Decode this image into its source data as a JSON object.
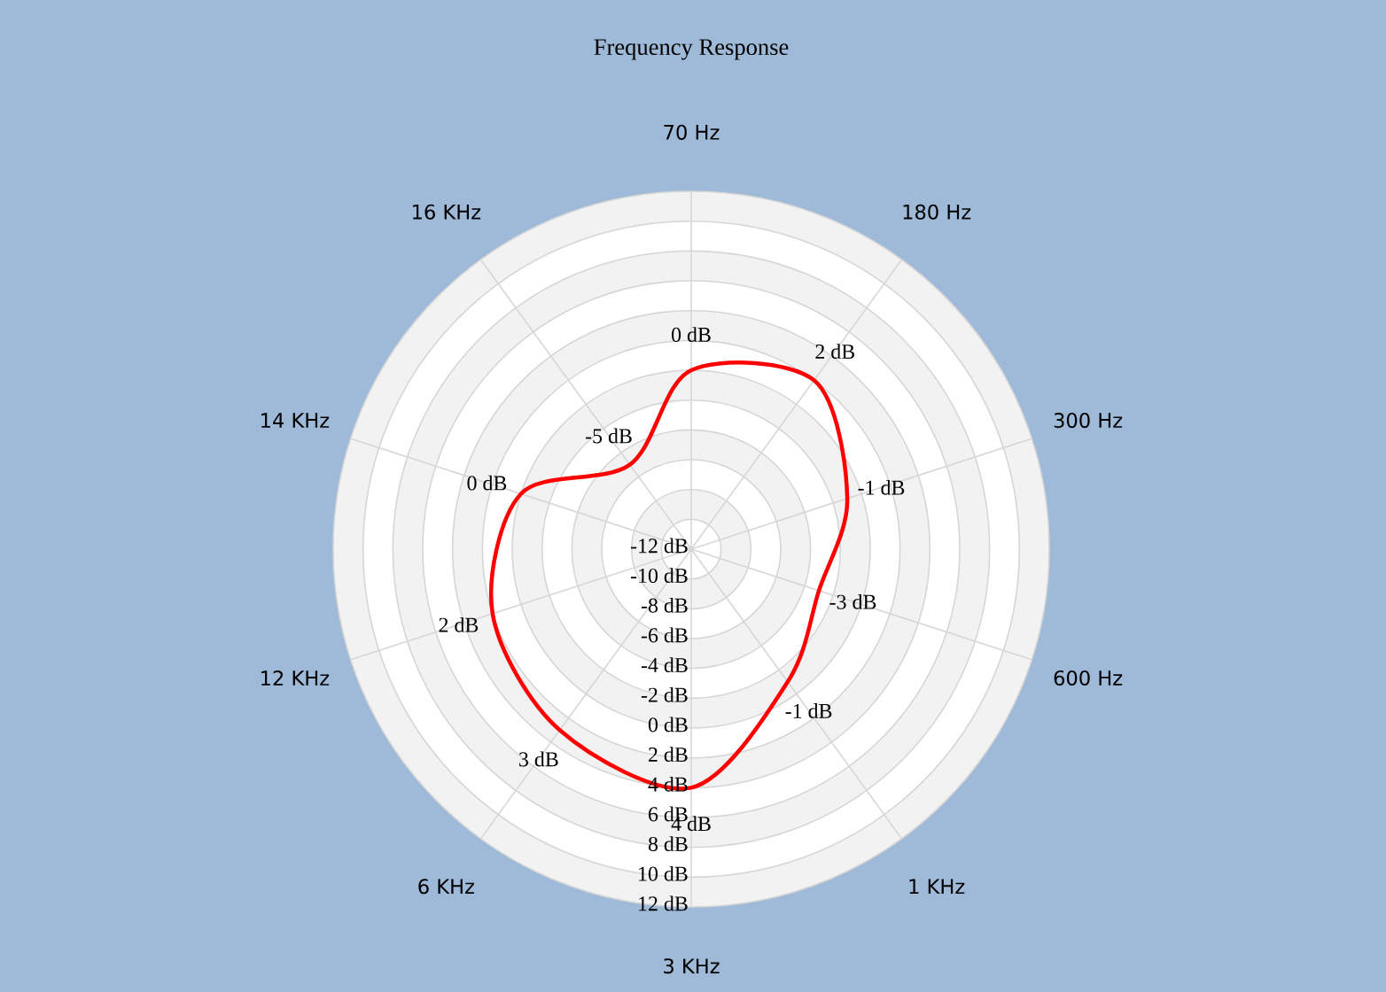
{
  "chart_data": {
    "type": "radar",
    "title": "Frequency Response",
    "categories": [
      "70 Hz",
      "180 Hz",
      "300 Hz",
      "600 Hz",
      "1 KHz",
      "3 KHz",
      "6 KHz",
      "12 KHz",
      "14 KHz",
      "16 KHz"
    ],
    "series": [
      {
        "color": "#ff0000",
        "values": [
          0,
          2,
          -1,
          -3,
          -1,
          4,
          3,
          2,
          0,
          -5
        ],
        "value_labels": [
          "0 dB",
          "2 dB",
          "-1 dB",
          "-3 dB",
          "-1 dB",
          "4 dB",
          "3 dB",
          "2 dB",
          "0 dB",
          "-5 dB"
        ]
      }
    ],
    "ylim": [
      -12,
      12
    ],
    "yticks": [
      {
        "value": -12,
        "label": "-12 dB"
      },
      {
        "value": -10,
        "label": "-10 dB"
      },
      {
        "value": -8,
        "label": "-8 dB"
      },
      {
        "value": -6,
        "label": "-6 dB"
      },
      {
        "value": -4,
        "label": "-4 dB"
      },
      {
        "value": -2,
        "label": "-2 dB"
      },
      {
        "value": 0,
        "label": "0 dB"
      },
      {
        "value": 2,
        "label": "2 dB"
      },
      {
        "value": 4,
        "label": "4 dB"
      },
      {
        "value": 6,
        "label": "6 dB"
      },
      {
        "value": 8,
        "label": "8 dB"
      },
      {
        "value": 10,
        "label": "10 dB"
      },
      {
        "value": 12,
        "label": "12 dB"
      }
    ],
    "grid": true
  }
}
